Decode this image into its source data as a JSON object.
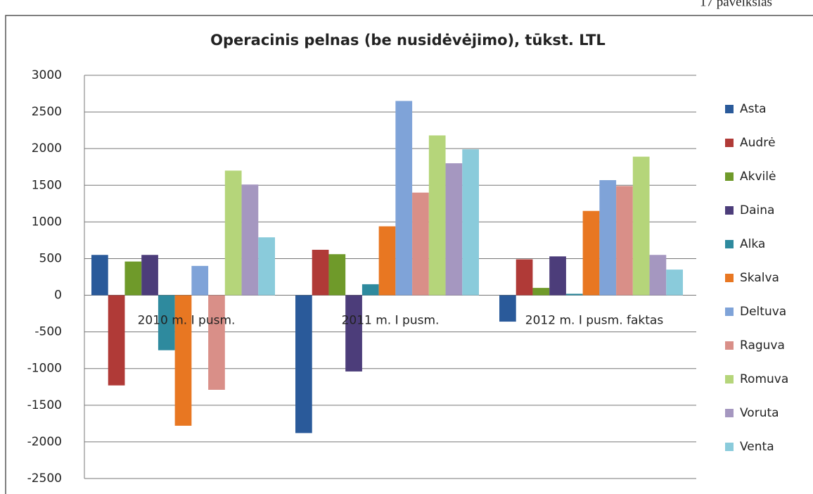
{
  "chart_data": {
    "type": "bar",
    "title": "Operacinis pelnas (be nusidėvėjimo), tūkst. LTL",
    "annotation": "17 paveikslas",
    "categories": [
      "2010 m. I pusm.",
      "2011 m. I pusm.",
      "2012 m. I pusm. faktas"
    ],
    "series": [
      {
        "name": "Asta",
        "color": "#2a5a9a",
        "values": [
          550,
          -1880,
          -360
        ]
      },
      {
        "name": "Audrė",
        "color": "#b03a37",
        "values": [
          -1230,
          620,
          490
        ]
      },
      {
        "name": "Akvilė",
        "color": "#6f9a2a",
        "values": [
          460,
          560,
          100
        ]
      },
      {
        "name": "Daina",
        "color": "#4c3d7a",
        "values": [
          550,
          -1040,
          530
        ]
      },
      {
        "name": "Alka",
        "color": "#2e8a9e",
        "values": [
          -750,
          150,
          20
        ]
      },
      {
        "name": "Skalva",
        "color": "#e87722",
        "values": [
          -1780,
          940,
          1150
        ]
      },
      {
        "name": "Deltuva",
        "color": "#7fa3d8",
        "values": [
          400,
          2650,
          1570
        ]
      },
      {
        "name": "Raguva",
        "color": "#d98f88",
        "values": [
          -1290,
          1400,
          1490
        ]
      },
      {
        "name": "Romuva",
        "color": "#b5d57a",
        "values": [
          1700,
          2180,
          1890
        ]
      },
      {
        "name": "Voruta",
        "color": "#a597c0",
        "values": [
          1510,
          1800,
          550
        ]
      },
      {
        "name": "Venta",
        "color": "#8acbdb",
        "values": [
          790,
          1990,
          350
        ]
      }
    ],
    "ylim": [
      -2500,
      3000
    ],
    "yticks": [
      -2500,
      -2000,
      -1500,
      -1000,
      -500,
      0,
      500,
      1000,
      1500,
      2000,
      2500,
      3000
    ],
    "grid": true,
    "legend": "right"
  }
}
